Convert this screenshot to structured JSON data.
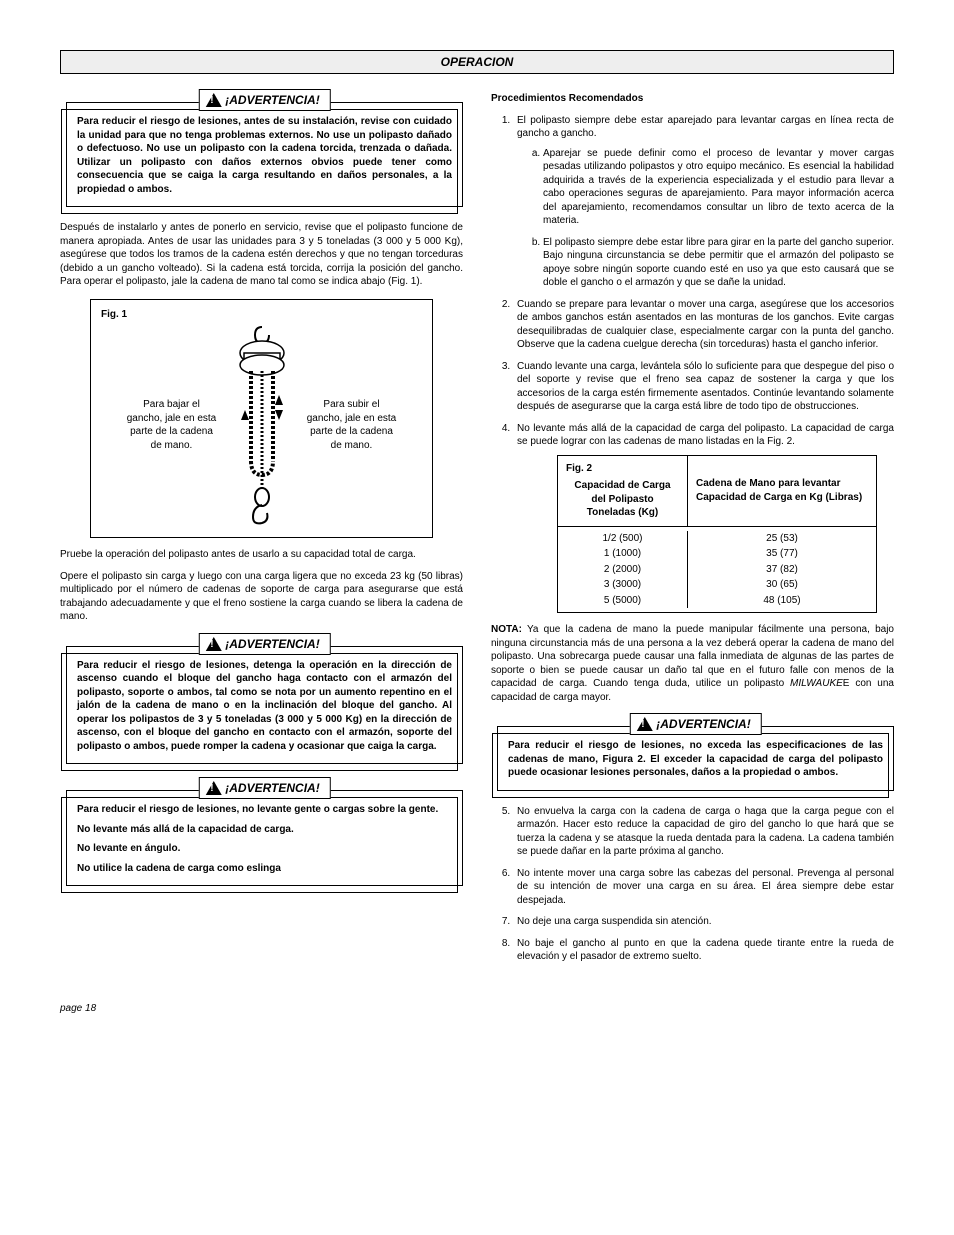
{
  "header": "OPERACION",
  "warnLabel": "¡ADVERTENCIA!",
  "left": {
    "warn1": "Para reducir el riesgo de lesiones, antes de su instalación, revise con cuidado la unidad para que no tenga problemas externos. No use un polipasto dañado o defectuoso. No use un polipasto con la cadena torcida, trenzada o dañada. Utilizar un polipasto con daños externos obvios puede tener como consecuencia que se caiga la carga resultando en daños personales, a la propiedad o ambos.",
    "p1": "Después de instalarlo y antes de ponerlo en servicio, revise que el polipasto funcione de manera apropiada. Antes de usar las unidades para 3 y 5 toneladas (3 000 y 5 000 Kg), asegúrese que todos los tramos de la cadena estén derechos y que no tengan torceduras (debido a un gancho volteado). Si la cadena está torcida, corrija la posición del gancho. Para operar el polipasto, jale la cadena de mano tal como se indica abajo (Fig. 1).",
    "fig1": {
      "label": "Fig. 1",
      "left": "Para bajar el gancho, jale en esta parte de la cadena de mano.",
      "right": "Para subir el gancho, jale en esta parte de la cadena de mano."
    },
    "p2": "Pruebe la operación del polipasto antes de usarlo a su capacidad total de carga.",
    "p3": "Opere el polipasto sin carga y luego con una carga ligera que no exceda 23 kg (50 libras) multiplicado por el número de cadenas de soporte de carga para asegurarse que está trabajando adecuadamente y que el freno sostiene la carga cuando se libera la cadena de mano.",
    "warn2": "Para reducir el riesgo de lesiones, detenga la operación en la dirección de ascenso cuando el bloque del gancho haga contacto con el armazón del polipasto, soporte o ambos, tal como se nota por un aumento repentino en el jalón de la cadena de mano o en la inclinación del bloque del gancho. Al operar los polipastos de 3 y 5 toneladas (3 000 y 5 000 Kg) en la dirección de ascenso, con el bloque del gancho en contacto con el armazón, soporte del polipasto o ambos, puede romper la cadena y ocasionar que caiga la carga.",
    "warn3": {
      "l1": "Para reducir el riesgo de lesiones, no levante gente o cargas sobre la gente.",
      "l2": "No levante más allá de la capacidad de carga.",
      "l3": "No levante en ángulo.",
      "l4": "No utilice la cadena de carga como eslinga"
    }
  },
  "right": {
    "subhead": "Procedimientos Recomendados",
    "li1": "El polipasto siempre debe estar aparejado para levantar cargas en línea recta de gancho a gancho.",
    "li1a": "Aparejar se puede definir como el proceso de levantar y mover cargas pesadas utilizando polipastos y otro equipo mecánico. Es esencial la habilidad adquirida a través de la experiencia especializada y el estudio para llevar a cabo operaciones seguras de aparejamiento. Para mayor información acerca del aparejamiento, recomendamos consultar un libro de texto acerca de la materia.",
    "li1b": "El polipasto siempre debe estar libre para girar en la parte del gancho superior. Bajo ninguna circunstancia se debe permitir que el armazón del polipasto se apoye sobre ningún soporte cuando esté en uso ya que esto causará que se doble el gancho o el armazón y que se dañe la unidad.",
    "li2": "Cuando se prepare para levantar o mover una carga, asegúrese que los accesorios de ambos ganchos están asentados en las monturas de los ganchos. Evite cargas desequilibradas de cualquier clase, especialmente cargar con la punta del gancho. Observe que la cadena cuelgue derecha (sin torceduras) hasta el gancho inferior.",
    "li3": "Cuando levante una carga, levántela sólo lo suficiente para que despegue del piso o del soporte y revise que el freno sea capaz de sostener la carga y que los accesorios de la carga estén firmemente asentados. Continúe levantando solamente después de asegurarse que la carga está libre de todo tipo de obstrucciones.",
    "li4": "No levante más allá de la capacidad de carga del polipasto. La capacidad de carga se puede lograr con las cadenas de mano listadas en la Fig. 2.",
    "fig2": {
      "label": "Fig. 2",
      "h1": "Capacidad de Carga del Polipasto Toneladas (Kg)",
      "h2": "Cadena de Mano para levantar Capacidad de Carga en Kg (Libras)",
      "rows": [
        {
          "c1": "1/2  (500)",
          "c2": "25  (53)"
        },
        {
          "c1": "1  (1000)",
          "c2": "35  (77)"
        },
        {
          "c1": "2  (2000)",
          "c2": "37  (82)"
        },
        {
          "c1": "3  (3000)",
          "c2": "30  (65)"
        },
        {
          "c1": "5  (5000)",
          "c2": "48  (105)"
        }
      ]
    },
    "noteLabel": "NOTA:",
    "note": " Ya que la cadena de mano la puede manipular fácilmente una persona, bajo ninguna circunstancia más de una persona a la vez deberá operar la cadena de mano del polipasto. Una sobrecarga puede causar una falla inmediata de algunas de las partes de soporte o bien se puede causar un daño tal que en el futuro falle con menos de la capacidad de carga. Cuando tenga duda, utilice un polipasto ",
    "noteBrand": "MILWAUKE",
    "noteEnd": "E con una capacidad de carga mayor.",
    "warn4": "Para reducir el riesgo de lesiones, no exceda las especificaciones de las cadenas de mano, Figura 2. El exceder la capacidad de carga del polipasto puede ocasionar lesiones personales, daños a la propiedad o ambos.",
    "li5": "No envuelva la carga con la cadena de carga o haga que la carga pegue con el armazón. Hacer esto reduce la capacidad de giro del gancho lo que hará que se tuerza la cadena y se atasque la rueda dentada para la cadena. La cadena también se puede dañar en la parte próxima al gancho.",
    "li6": "No intente mover una carga sobre las cabezas del personal. Prevenga al personal de su intención de mover una carga en su área. El área siempre debe estar despejada.",
    "li7": "No deje una carga suspendida sin atención.",
    "li8": "No baje el gancho al punto en que la cadena quede tirante entre la rueda de elevación y el pasador de extremo suelto."
  },
  "pageNum": "page 18"
}
